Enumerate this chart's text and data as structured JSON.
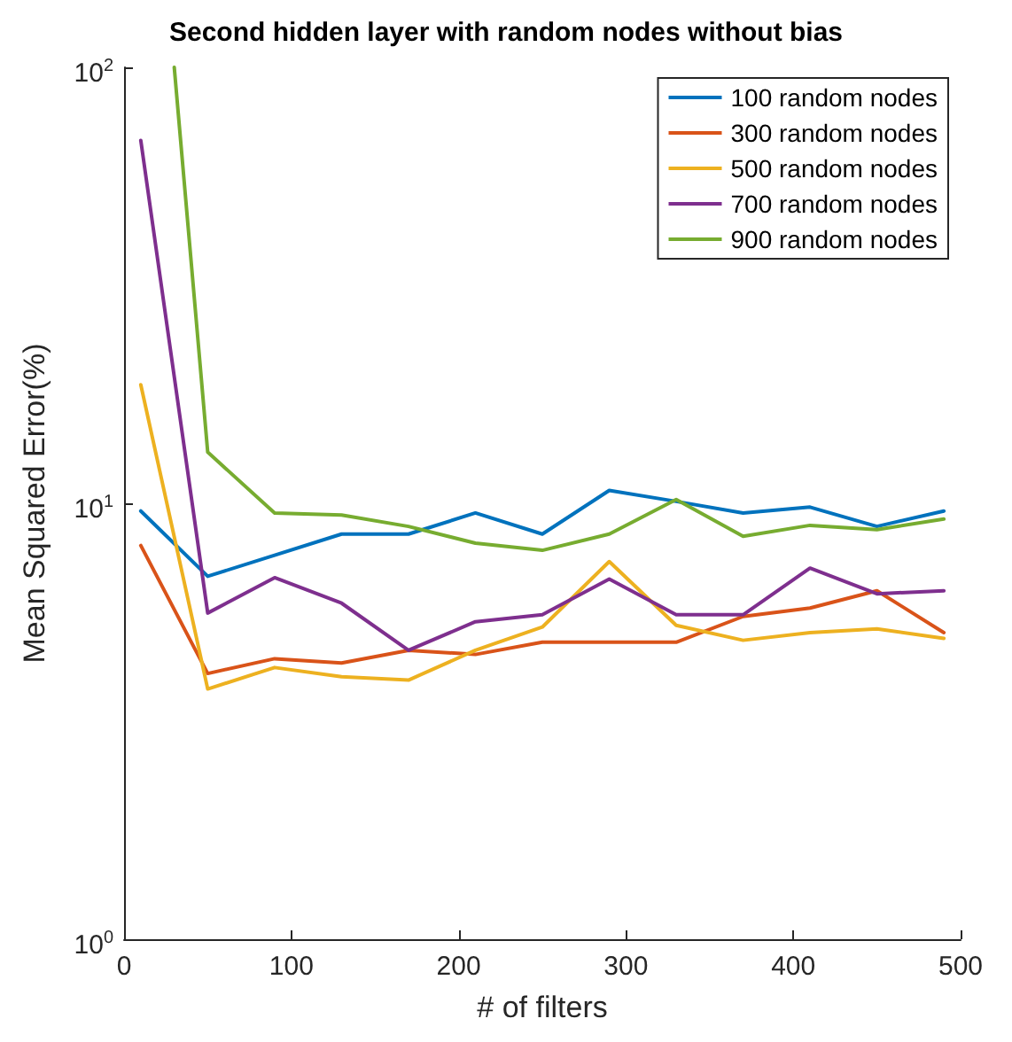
{
  "chart_data": {
    "type": "line",
    "title": "Second hidden layer with random nodes without bias",
    "xlabel": "# of filters",
    "ylabel": "Mean Squared Error(%)",
    "x": [
      10,
      50,
      90,
      130,
      170,
      210,
      250,
      290,
      330,
      370,
      410,
      450,
      490
    ],
    "xlim": [
      0,
      500
    ],
    "xticks": [
      0,
      100,
      200,
      300,
      400,
      500
    ],
    "ylim": [
      1,
      100
    ],
    "yticks": [
      {
        "value": 1,
        "label": "10$^{0}$"
      },
      {
        "value": 10,
        "label": "10$^{1}$"
      },
      {
        "value": 100,
        "label": "10$^{2}$"
      }
    ],
    "log": "y",
    "grid": false,
    "legend": "top right",
    "marker": "none",
    "line_style": "solid",
    "series": [
      {
        "name": "100 random nodes",
        "color": "#0072bd",
        "values": [
          9.6,
          6.8,
          7.6,
          8.5,
          8.5,
          9.5,
          8.5,
          10.7,
          10.1,
          9.5,
          9.8,
          8.85,
          9.6
        ]
      },
      {
        "name": "300 random nodes",
        "color": "#d95319",
        "values": [
          8.0,
          4.07,
          4.4,
          4.3,
          4.6,
          4.5,
          4.8,
          4.8,
          4.8,
          5.5,
          5.75,
          6.3,
          5.05
        ]
      },
      {
        "name": "500 random nodes",
        "color": "#edb120",
        "values": [
          18.7,
          3.75,
          4.2,
          4.0,
          3.93,
          4.6,
          5.2,
          7.35,
          5.25,
          4.85,
          5.05,
          5.15,
          4.9
        ]
      },
      {
        "name": "700 random nodes",
        "color": "#7e2f8e",
        "values": [
          68,
          5.6,
          6.75,
          5.9,
          4.6,
          5.35,
          5.55,
          6.7,
          5.55,
          5.55,
          7.1,
          6.2,
          6.3
        ]
      },
      {
        "name": "900 random nodes",
        "color": "#77ac30",
        "x": [
          30,
          50,
          90,
          130,
          170,
          210,
          250,
          290,
          330,
          370,
          410,
          450,
          490
        ],
        "values": [
          100,
          13.1,
          9.5,
          9.4,
          8.85,
          8.1,
          7.8,
          8.5,
          10.2,
          8.4,
          8.9,
          8.7,
          9.2
        ]
      }
    ]
  }
}
